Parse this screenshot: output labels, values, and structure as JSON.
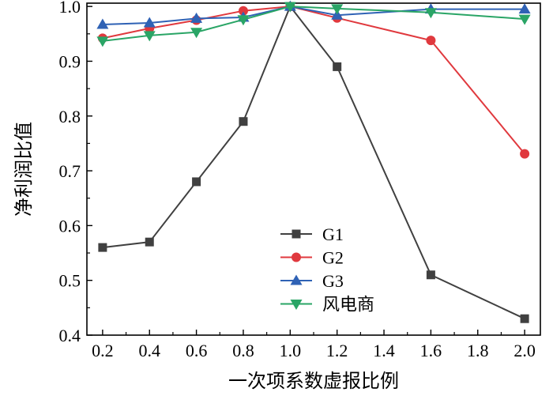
{
  "chart_data": {
    "type": "line",
    "title": "",
    "xlabel": "一次项系数虚报比例",
    "ylabel": "净利润比值",
    "xlim": [
      0.2,
      2.0
    ],
    "ylim": [
      0.4,
      1.0
    ],
    "xticks": [
      "0.2",
      "0.4",
      "0.6",
      "0.8",
      "1.0",
      "1.2",
      "1.4",
      "1.6",
      "1.8",
      "2.0"
    ],
    "yticks": [
      "0.4",
      "0.5",
      "0.6",
      "0.7",
      "0.8",
      "0.9",
      "1.0"
    ],
    "grid": false,
    "legend_position": "bottom-center",
    "series": [
      {
        "name": "G1",
        "color": "#404040",
        "marker": "square",
        "points": [
          [
            0.2,
            0.56
          ],
          [
            0.4,
            0.57
          ],
          [
            0.6,
            0.68
          ],
          [
            0.8,
            0.79
          ],
          [
            1.0,
            1.0
          ],
          [
            1.2,
            0.89
          ],
          [
            1.6,
            0.51
          ],
          [
            2.0,
            0.43
          ]
        ]
      },
      {
        "name": "G2",
        "color": "#e0393e",
        "marker": "circle",
        "points": [
          [
            0.2,
            0.942
          ],
          [
            0.4,
            0.96
          ],
          [
            0.6,
            0.975
          ],
          [
            0.8,
            0.992
          ],
          [
            1.0,
            1.0
          ],
          [
            1.2,
            0.979
          ],
          [
            1.6,
            0.938
          ],
          [
            2.0,
            0.731
          ]
        ]
      },
      {
        "name": "G3",
        "color": "#2f62b5",
        "marker": "triangle-up",
        "points": [
          [
            0.2,
            0.967
          ],
          [
            0.4,
            0.97
          ],
          [
            0.6,
            0.978
          ],
          [
            0.8,
            0.98
          ],
          [
            1.0,
            1.0
          ],
          [
            1.2,
            0.984
          ],
          [
            1.6,
            0.995
          ],
          [
            2.0,
            0.995
          ]
        ]
      },
      {
        "name": "风电商",
        "color": "#2aa566",
        "marker": "triangle-down",
        "points": [
          [
            0.2,
            0.937
          ],
          [
            0.4,
            0.947
          ],
          [
            0.6,
            0.953
          ],
          [
            0.8,
            0.976
          ],
          [
            1.0,
            1.0
          ],
          [
            1.2,
            0.996
          ],
          [
            1.6,
            0.989
          ],
          [
            2.0,
            0.977
          ]
        ]
      }
    ]
  }
}
